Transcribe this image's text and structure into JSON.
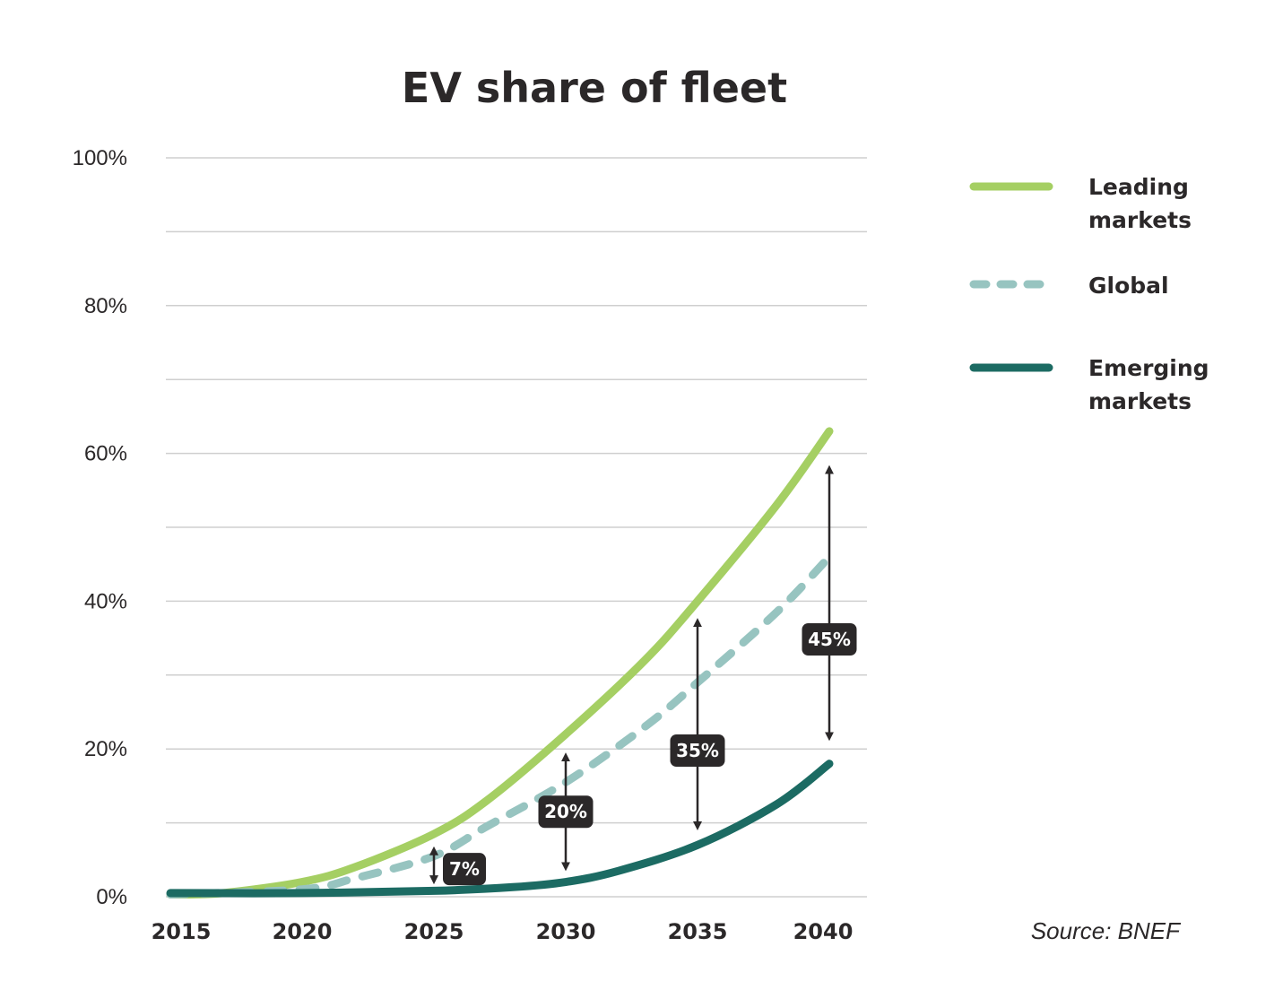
{
  "chart_data": {
    "type": "line",
    "title": "EV share of fleet",
    "xlabel": "",
    "ylabel": "",
    "x_ticks": [
      "2015",
      "2020",
      "2025",
      "2030",
      "2035",
      "2040"
    ],
    "y_ticks": [
      "0%",
      "20%",
      "40%",
      "60%",
      "80%",
      "100%"
    ],
    "xlim": [
      2015,
      2040
    ],
    "ylim": [
      0,
      100
    ],
    "grid": "horizontal every 10%",
    "legend_position": "right",
    "series": [
      {
        "name": "Leading markets",
        "legend_lines": [
          "Leading",
          "markets"
        ],
        "color": "#a5cf63",
        "style": "solid",
        "x": [
          2015,
          2017,
          2020,
          2022,
          2025,
          2027,
          2030,
          2033,
          2035,
          2038,
          2040
        ],
        "y": [
          0.3,
          0.5,
          2,
          4,
          8.5,
          13,
          22,
          32,
          40,
          53,
          63
        ]
      },
      {
        "name": "Global",
        "legend_lines": [
          "Global"
        ],
        "color": "#97c4c0",
        "style": "dashed",
        "x": [
          2015,
          2020,
          2022,
          2025,
          2027,
          2030,
          2033,
          2035,
          2038,
          2040
        ],
        "y": [
          0.3,
          1,
          2.5,
          5.5,
          9.5,
          15.5,
          23,
          29,
          38.5,
          46
        ]
      },
      {
        "name": "Emerging markets",
        "legend_lines": [
          "Emerging",
          "markets"
        ],
        "color": "#1c6b63",
        "style": "solid",
        "x": [
          2015,
          2020,
          2025,
          2028,
          2030,
          2032,
          2035,
          2038,
          2040
        ],
        "y": [
          0.5,
          0.5,
          0.8,
          1.3,
          2,
          3.5,
          7,
          12.5,
          18
        ]
      }
    ],
    "annotations": [
      {
        "label": "7%",
        "x": 2025,
        "from": 1.8,
        "to": 6.7
      },
      {
        "label": "20%",
        "x": 2030,
        "from": 3.6,
        "to": 19.4
      },
      {
        "label": "35%",
        "x": 2035,
        "from": 9.1,
        "to": 37.6
      },
      {
        "label": "45%",
        "x": 2040,
        "from": 21.2,
        "to": 58.3
      }
    ],
    "source": "Source: BNEF"
  }
}
